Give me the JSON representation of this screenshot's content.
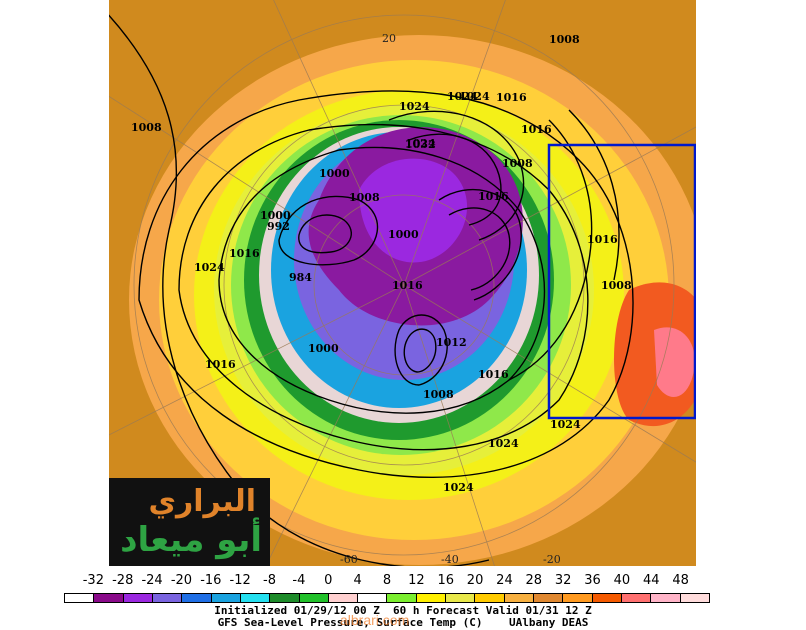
{
  "map": {
    "pressure_labels": [
      {
        "text": "1008",
        "kind": "high"
      },
      {
        "text": "1024",
        "kind": "high"
      },
      {
        "text": "1016",
        "kind": "high"
      },
      {
        "text": "1008",
        "kind": "mid"
      },
      {
        "text": "1024",
        "kind": "mid"
      },
      {
        "text": "1016",
        "kind": "mid"
      },
      {
        "text": "1000",
        "kind": "low"
      },
      {
        "text": "1008",
        "kind": "mid"
      },
      {
        "text": "1016",
        "kind": "mid"
      },
      {
        "text": "1024",
        "kind": "mid"
      },
      {
        "text": "1016",
        "kind": "mid"
      },
      {
        "text": "1000",
        "kind": "low"
      },
      {
        "text": "992",
        "kind": "low"
      },
      {
        "text": "1024",
        "kind": "high"
      },
      {
        "text": "1016",
        "kind": "mid"
      },
      {
        "text": "984",
        "kind": "low"
      },
      {
        "text": "1016",
        "kind": "mid"
      },
      {
        "text": "1008",
        "kind": "mid"
      },
      {
        "text": "1016",
        "kind": "mid"
      },
      {
        "text": "1000",
        "kind": "low"
      },
      {
        "text": "1008",
        "kind": "mid"
      },
      {
        "text": "1016",
        "kind": "mid"
      },
      {
        "text": "1024",
        "kind": "high"
      },
      {
        "text": "1024",
        "kind": "high"
      },
      {
        "text": "1024",
        "kind": "high"
      },
      {
        "text": "1024",
        "kind": "high"
      },
      {
        "text": "1032",
        "kind": "high"
      },
      {
        "text": "1008",
        "kind": "mid"
      },
      {
        "text": "1000",
        "kind": "low"
      },
      {
        "text": "1012",
        "kind": "mid"
      }
    ],
    "grid_labels": [
      "20",
      "-60",
      "-40",
      "-20"
    ],
    "highlight_box_color": "#0019cc"
  },
  "colorbar": {
    "ticks": [
      "-32",
      "-28",
      "-24",
      "-20",
      "-16",
      "-12",
      "-8",
      "-4",
      "0",
      "4",
      "8",
      "12",
      "16",
      "20",
      "24",
      "28",
      "32",
      "36",
      "40",
      "44",
      "48"
    ],
    "colors": [
      "#ffffff",
      "#8a0a8a",
      "#9b28e0",
      "#7a64e0",
      "#1f6fe6",
      "#1aa3e0",
      "#25e0f0",
      "#1e8c2a",
      "#22c12a",
      "#ffd0d0",
      "#ffffff",
      "#7bef2f",
      "#fff000",
      "#e8e84a",
      "#ffcb00",
      "#f7b040",
      "#e08830",
      "#ff9a20",
      "#f55a00",
      "#ff7070",
      "#ffb4c8",
      "#ffdcdc"
    ]
  },
  "footer": {
    "line1": "Initialized 01/29/12 00 Z  60 h Forecast Valid 01/31 12 Z",
    "line2": "GFS Sea-Level Pressure, Surface Temp (C)    UAlbany DEAS"
  },
  "logo": {
    "line1": "البراري",
    "line2": "أبو ميعاد"
  },
  "watermark": "albrari.com"
}
